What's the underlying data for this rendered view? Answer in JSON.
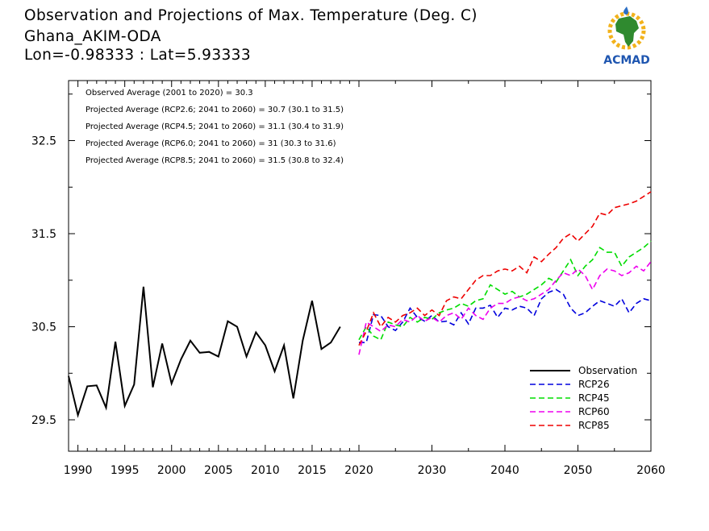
{
  "header": {
    "title": "Observation and Projections of Max. Temperature (Deg. C)",
    "station": "Ghana_AKIM-ODA",
    "coords": "Lon=-0.98333 : Lat=5.93333"
  },
  "logo": {
    "text": "ACMAD",
    "icon": "africa-map-logo-icon"
  },
  "chart_data": {
    "type": "line",
    "title": "Observation and Projections of Max. Temperature (Deg. C)",
    "xlabel": "",
    "ylabel": "",
    "ylim": [
      29.2,
      31.5
    ],
    "y_ticks": [
      29.5,
      30.5,
      31.5,
      32.5
    ],
    "y_tick_labels": [
      "29.5",
      "30.5",
      "31.5",
      "32.5"
    ],
    "x_segments": [
      {
        "from": 1990,
        "to": 2020,
        "ticks": [
          1990,
          1995,
          2000,
          2005,
          2010,
          2015,
          2020
        ],
        "labels": [
          "1990",
          "1995",
          "2000",
          "2005",
          "2010",
          "2015",
          "2020"
        ]
      },
      {
        "from": 2020,
        "to": 2060,
        "ticks": [
          2030,
          2040,
          2050,
          2060
        ],
        "labels": [
          "2030",
          "2040",
          "2050",
          "2060"
        ]
      }
    ],
    "annotations": [
      "Observed Average (2001 to 2020) = 30.3",
      "Projected Average (RCP2.6; 2041 to 2060) = 30.7 (30.1 to 31.5)",
      "Projected Average (RCP4.5; 2041 to 2060) = 31.1 (30.4 to 31.9)",
      "Projected Average (RCP6.0; 2041 to 2060) = 31 (30.3 to 31.6)",
      "Projected Average (RCP8.5; 2041 to 2060) = 31.5 (30.8 to 32.4)"
    ],
    "legend_position": "bottom-right",
    "series": [
      {
        "name": "Observation",
        "color": "#000000",
        "dash": "solid",
        "start": 1989,
        "values": [
          29.97,
          29.55,
          29.86,
          29.87,
          29.63,
          30.34,
          29.65,
          29.88,
          30.93,
          29.85,
          30.32,
          29.89,
          30.15,
          30.35,
          30.22,
          30.23,
          30.18,
          30.56,
          30.5,
          30.18,
          30.44,
          30.3,
          30.02,
          30.3,
          29.73,
          30.35,
          30.78,
          30.26,
          30.33,
          30.5
        ]
      },
      {
        "name": "RCP26",
        "color": "#0000dd",
        "dash": "dashed",
        "start": 2020,
        "values": [
          30.33,
          30.33,
          30.63,
          30.62,
          30.5,
          30.46,
          30.55,
          30.7,
          30.6,
          30.56,
          30.62,
          30.55,
          30.56,
          30.52,
          30.65,
          30.53,
          30.7,
          30.7,
          30.73,
          30.6,
          30.7,
          30.68,
          30.72,
          30.7,
          30.62,
          30.8,
          30.87,
          30.9,
          30.85,
          30.7,
          30.62,
          30.65,
          30.72,
          30.78,
          30.75,
          30.72,
          30.8,
          30.65,
          30.75,
          30.8,
          30.78
        ]
      },
      {
        "name": "RCP45",
        "color": "#00dd00",
        "dash": "dashed",
        "start": 2020,
        "values": [
          30.36,
          30.5,
          30.4,
          30.36,
          30.55,
          30.52,
          30.5,
          30.6,
          30.55,
          30.6,
          30.58,
          30.65,
          30.68,
          30.7,
          30.75,
          30.72,
          30.78,
          30.8,
          30.95,
          30.9,
          30.85,
          30.88,
          30.82,
          30.85,
          30.9,
          30.95,
          31.02,
          30.98,
          31.1,
          31.22,
          31.05,
          31.15,
          31.22,
          31.35,
          31.3,
          31.3,
          31.15,
          31.25,
          31.3,
          31.35,
          31.42
        ]
      },
      {
        "name": "RCP60",
        "color": "#ee00ee",
        "dash": "dashed",
        "start": 2020,
        "values": [
          30.2,
          30.55,
          30.5,
          30.45,
          30.52,
          30.5,
          30.58,
          30.55,
          30.62,
          30.56,
          30.6,
          30.55,
          30.62,
          30.65,
          30.58,
          30.7,
          30.62,
          30.58,
          30.7,
          30.75,
          30.75,
          30.8,
          30.82,
          30.78,
          30.8,
          30.85,
          30.9,
          31.0,
          31.08,
          31.05,
          31.12,
          31.05,
          30.9,
          31.05,
          31.12,
          31.1,
          31.05,
          31.08,
          31.15,
          31.1,
          31.2
        ]
      },
      {
        "name": "RCP85",
        "color": "#ee0000",
        "dash": "dashed",
        "start": 2020,
        "values": [
          30.3,
          30.45,
          30.65,
          30.5,
          30.6,
          30.55,
          30.62,
          30.65,
          30.7,
          30.62,
          30.68,
          30.62,
          30.78,
          30.82,
          30.8,
          30.9,
          31.0,
          31.05,
          31.05,
          31.1,
          31.12,
          31.1,
          31.15,
          31.08,
          31.25,
          31.2,
          31.28,
          31.35,
          31.45,
          31.5,
          31.42,
          31.5,
          31.58,
          31.72,
          31.7,
          31.78,
          31.8,
          31.82,
          31.85,
          31.9,
          31.95
        ]
      }
    ]
  }
}
